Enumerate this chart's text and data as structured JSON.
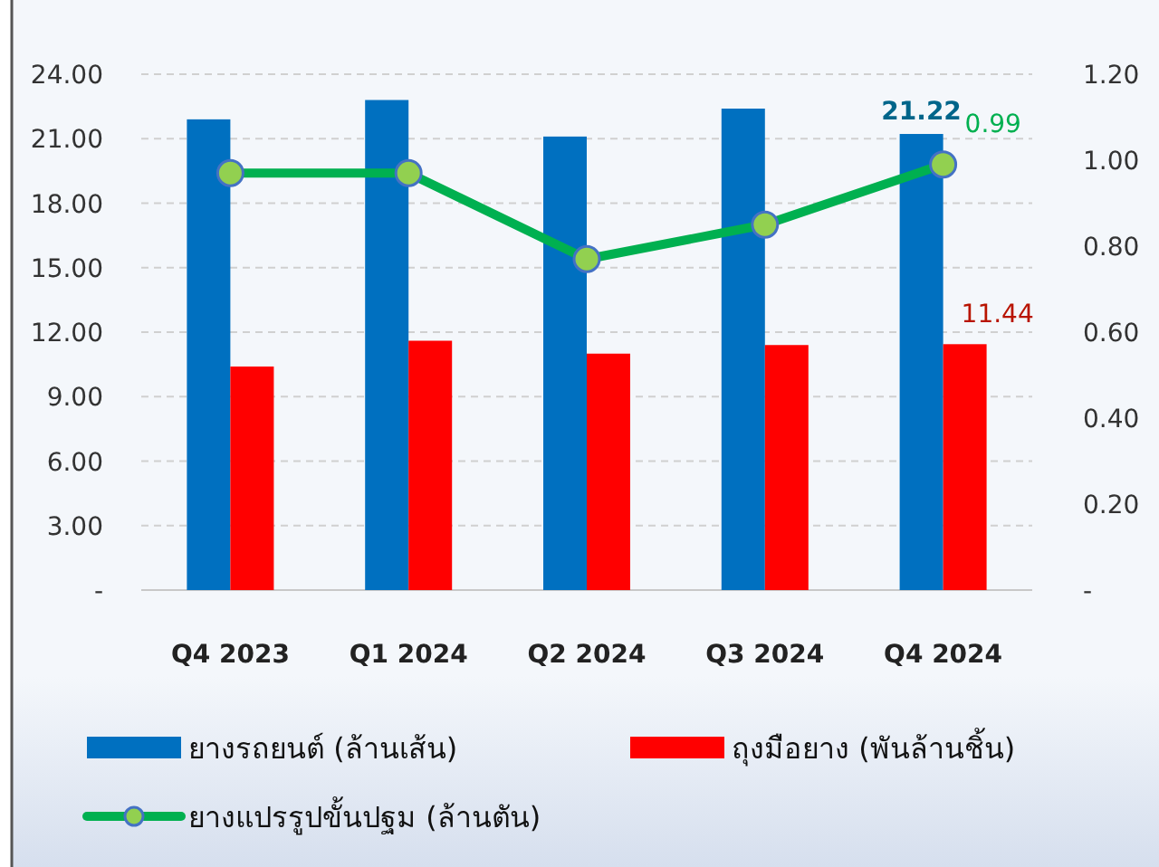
{
  "chart_data": {
    "type": "bar",
    "categories": [
      "Q4 2023",
      "Q1 2024",
      "Q2 2024",
      "Q3 2024",
      "Q4 2024"
    ],
    "series": [
      {
        "name": "ยางรถยนต์ (ล้านเส้น)",
        "color": "#0070c0",
        "values": [
          21.9,
          22.8,
          21.1,
          22.4,
          21.22
        ],
        "value_labels": [
          null,
          null,
          null,
          null,
          "21.22"
        ]
      },
      {
        "name": "ถุงมือยาง (พันล้านชิ้น)",
        "color": "#ff0000",
        "values": [
          10.4,
          11.6,
          11.0,
          11.4,
          11.44
        ],
        "value_labels": [
          null,
          null,
          null,
          null,
          "11.44"
        ]
      },
      {
        "name": "ยางแปรรูปขั้นปฐม (ล้านตัน)",
        "type": "line",
        "axis": "y2",
        "color": "#00b050",
        "values": [
          0.97,
          0.97,
          0.77,
          0.85,
          0.99
        ],
        "value_labels": [
          null,
          null,
          null,
          null,
          "0.99"
        ]
      }
    ],
    "ylim": [
      0,
      24
    ],
    "yticks": [
      {
        "value": 0,
        "label": "-"
      },
      {
        "value": 3,
        "label": "3.00"
      },
      {
        "value": 6,
        "label": "6.00"
      },
      {
        "value": 9,
        "label": "9.00"
      },
      {
        "value": 12,
        "label": "12.00"
      },
      {
        "value": 15,
        "label": "15.00"
      },
      {
        "value": 18,
        "label": "18.00"
      },
      {
        "value": 21,
        "label": "21.00"
      },
      {
        "value": 24,
        "label": "24.00"
      }
    ],
    "y2lim": [
      0,
      1.2
    ],
    "y2ticks": [
      {
        "value": 0,
        "label": "-"
      },
      {
        "value": 0.2,
        "label": "0.20"
      },
      {
        "value": 0.4,
        "label": "0.40"
      },
      {
        "value": 0.6,
        "label": "0.60"
      },
      {
        "value": 0.8,
        "label": "0.80"
      },
      {
        "value": 1.0,
        "label": "1.00"
      },
      {
        "value": 1.2,
        "label": "1.20"
      }
    ],
    "grid": "y",
    "legend": "bottom",
    "marker": "circle",
    "line_style": "solid"
  }
}
